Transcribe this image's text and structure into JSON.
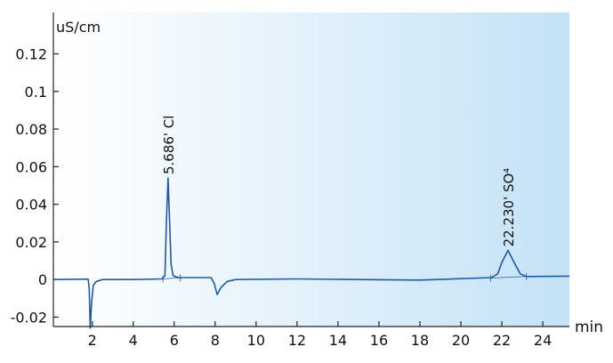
{
  "chart_data": {
    "type": "line",
    "ylabel": "uS/cm",
    "xlabel": "min",
    "xlim": [
      0.1,
      25.3
    ],
    "ylim": [
      -0.025,
      0.142
    ],
    "xticks": [
      2,
      4,
      6,
      8,
      10,
      12,
      14,
      16,
      18,
      20,
      22,
      24
    ],
    "yticks": [
      -0.02,
      0,
      0.02,
      0.04,
      0.06,
      0.08,
      0.1,
      0.12
    ],
    "ytick_labels": [
      "-0.02",
      "0",
      "0.02",
      "0.04",
      "0.06",
      "0.08",
      "0.1",
      "0.12"
    ],
    "grid": false,
    "colors": {
      "trace": "#1f5aa6",
      "background_left": "#ffffff",
      "background_right": "#c4e2f6"
    },
    "series": [
      {
        "points": [
          [
            0.1,
            0
          ],
          [
            1.8,
            0.0002
          ],
          [
            1.85,
            -0.005
          ],
          [
            1.9,
            -0.026
          ],
          [
            1.97,
            -0.012
          ],
          [
            2.05,
            -0.003
          ],
          [
            2.2,
            -0.001
          ],
          [
            2.5,
            0
          ],
          [
            4,
            0
          ],
          [
            5.4,
            0.0003
          ],
          [
            5.55,
            0.002
          ],
          [
            5.62,
            0.03
          ],
          [
            5.7,
            0.054
          ],
          [
            5.78,
            0.03
          ],
          [
            5.85,
            0.008
          ],
          [
            5.95,
            0.002
          ],
          [
            6.2,
            0.001
          ],
          [
            7.8,
            0.001
          ],
          [
            7.95,
            -0.002
          ],
          [
            8.1,
            -0.008
          ],
          [
            8.3,
            -0.004
          ],
          [
            8.6,
            -0.001
          ],
          [
            9,
            0
          ],
          [
            12,
            0.0003
          ],
          [
            15,
            0
          ],
          [
            18,
            -0.0003
          ],
          [
            21.5,
            0.001
          ],
          [
            21.8,
            0.003
          ],
          [
            22.0,
            0.009
          ],
          [
            22.3,
            0.0155
          ],
          [
            22.6,
            0.009
          ],
          [
            22.9,
            0.003
          ],
          [
            23.2,
            0.0016
          ],
          [
            25.3,
            0.0018
          ]
        ]
      }
    ],
    "peaks": [
      {
        "label": "5.686' Cl",
        "x": 5.7,
        "y": 0.054,
        "baseline": [
          [
            5.45,
            0.0003
          ],
          [
            6.3,
            0.0009
          ]
        ]
      },
      {
        "label": "22.230' SO⁴",
        "x": 22.3,
        "y": 0.0155,
        "baseline": [
          [
            21.45,
            0.0008
          ],
          [
            23.2,
            0.0016
          ]
        ]
      }
    ]
  }
}
